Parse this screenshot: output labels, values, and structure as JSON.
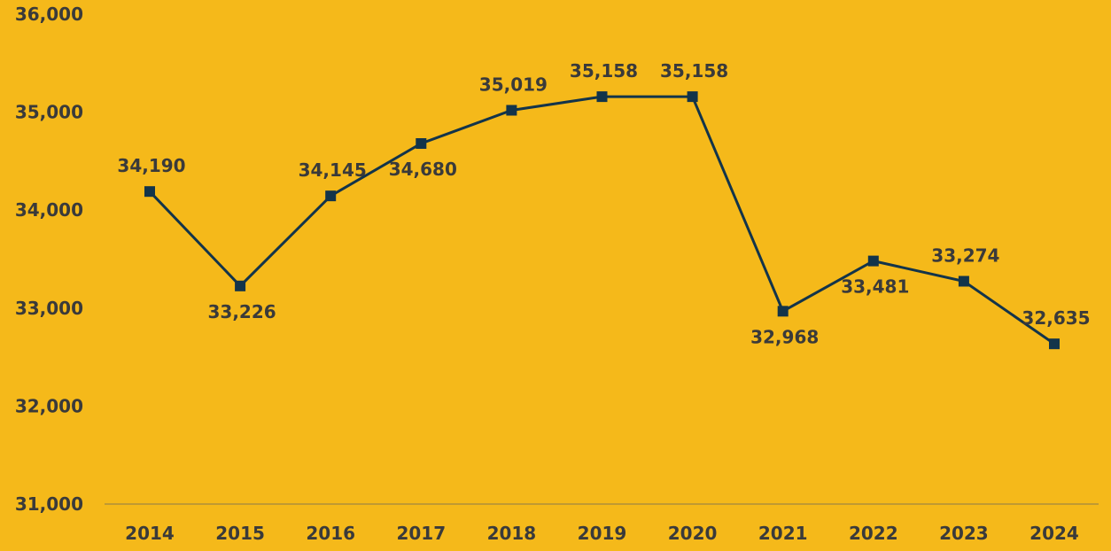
{
  "chart_data": {
    "type": "line",
    "title": "",
    "xlabel": "",
    "ylabel": "",
    "categories": [
      "2014",
      "2015",
      "2016",
      "2017",
      "2018",
      "2019",
      "2020",
      "2021",
      "2022",
      "2023",
      "2024"
    ],
    "series": [
      {
        "values": [
          34190,
          33226,
          34145,
          34680,
          35019,
          35158,
          35158,
          32968,
          33481,
          33274,
          32635
        ],
        "data_labels": [
          "34,190",
          "33,226",
          "34,145",
          "34,680",
          "35,019",
          "35,158",
          "35,158",
          "32,968",
          "33,481",
          "33,274",
          "32,635"
        ],
        "label_positions": [
          "above",
          "below",
          "above",
          "below",
          "above",
          "above",
          "above",
          "below",
          "below",
          "above",
          "above"
        ],
        "color": "#13344A",
        "marker": "square"
      }
    ],
    "ylim": [
      31000,
      36000
    ],
    "yticks": [
      31000,
      32000,
      33000,
      34000,
      35000,
      36000
    ],
    "ytick_labels": [
      "31,000",
      "32,000",
      "33,000",
      "34,000",
      "35,000",
      "36,000"
    ],
    "grid": false,
    "legend": "none"
  },
  "colors": {
    "background": "#F5B91A",
    "line": "#13344A",
    "text": "#3A3A3A",
    "axis": "#8C7A4A"
  }
}
